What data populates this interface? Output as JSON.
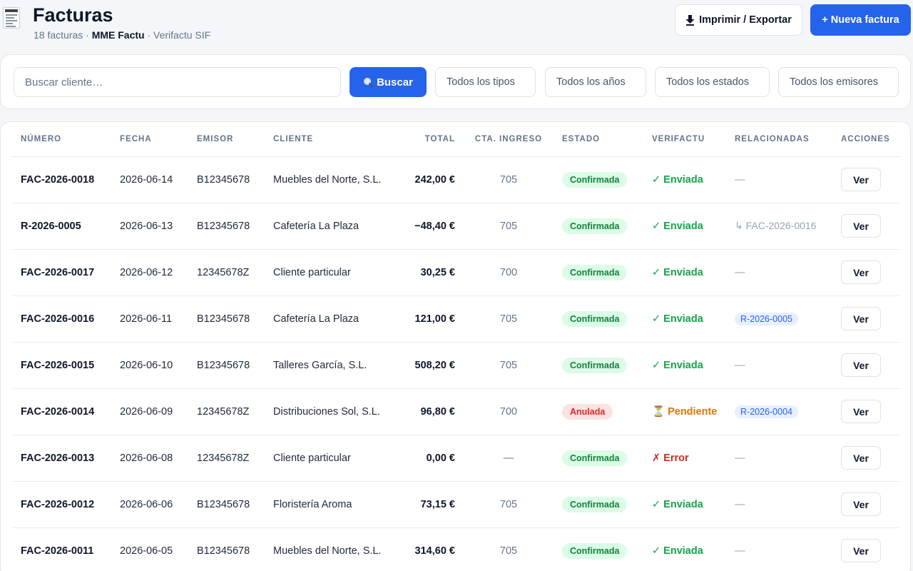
{
  "header": {
    "title": "Facturas",
    "subtitle_count": "18 facturas · ",
    "subtitle_company": "MME Factu",
    "subtitle_suffix": " · Verifactu SIF",
    "export_label": "Imprimir / Exportar",
    "new_label": "+ Nueva factura",
    "app_icon": "receipt-icon",
    "export_icon": "download-icon"
  },
  "filters": {
    "search_placeholder": "Buscar cliente…",
    "search_button": "Buscar",
    "search_icon": "magnifier-icon",
    "tipo": "Todos los tipos",
    "anio": "Todos los años",
    "estado": "Todos los estados",
    "emisor": "Todos los emisores"
  },
  "colors": {
    "accent": "#2563eb",
    "success": "#16a34a",
    "warning": "#d97706",
    "danger": "#dc2626"
  },
  "table": {
    "columns": [
      "NÚMERO",
      "FECHA",
      "EMISOR",
      "CLIENTE",
      "TOTAL",
      "CTA. INGRESO",
      "ESTADO",
      "VERIFACTU",
      "RELACIONADAS",
      "ACCIONES"
    ],
    "rows": [
      {
        "numero": "FAC-2026-0018",
        "fecha": "2026-06-14",
        "emisor": "B12345678",
        "cliente": "Muebles del Norte, S.L.",
        "total": "242,00 €",
        "cta": "705",
        "estado": "Confirmada",
        "estado_kind": "ok",
        "verif": "✓ Enviada",
        "verif_kind": "ok",
        "rel": "—",
        "rel_kind": "none",
        "accion": "Ver"
      },
      {
        "numero": "R-2026-0005",
        "fecha": "2026-06-13",
        "emisor": "B12345678",
        "cliente": "Cafetería La Plaza",
        "total": "−48,40 €",
        "cta": "705",
        "estado": "Confirmada",
        "estado_kind": "ok",
        "verif": "✓ Enviada",
        "verif_kind": "ok",
        "rel": "↳ FAC-2026-0016",
        "rel_kind": "link",
        "accion": "Ver"
      },
      {
        "numero": "FAC-2026-0017",
        "fecha": "2026-06-12",
        "emisor": "12345678Z",
        "cliente": "Cliente particular",
        "total": "30,25 €",
        "cta": "700",
        "estado": "Confirmada",
        "estado_kind": "ok",
        "verif": "✓ Enviada",
        "verif_kind": "ok",
        "rel": "—",
        "rel_kind": "none",
        "accion": "Ver"
      },
      {
        "numero": "FAC-2026-0016",
        "fecha": "2026-06-11",
        "emisor": "B12345678",
        "cliente": "Cafetería La Plaza",
        "total": "121,00 €",
        "cta": "705",
        "estado": "Confirmada",
        "estado_kind": "ok",
        "verif": "✓ Enviada",
        "verif_kind": "ok",
        "rel": "R-2026-0005",
        "rel_kind": "chip",
        "accion": "Ver"
      },
      {
        "numero": "FAC-2026-0015",
        "fecha": "2026-06-10",
        "emisor": "B12345678",
        "cliente": "Talleres García, S.L.",
        "total": "508,20 €",
        "cta": "705",
        "estado": "Confirmada",
        "estado_kind": "ok",
        "verif": "✓ Enviada",
        "verif_kind": "ok",
        "rel": "—",
        "rel_kind": "none",
        "accion": "Ver"
      },
      {
        "numero": "FAC-2026-0014",
        "fecha": "2026-06-09",
        "emisor": "12345678Z",
        "cliente": "Distribuciones Sol, S.L.",
        "total": "96,80 €",
        "cta": "700",
        "estado": "Anulada",
        "estado_kind": "bad",
        "verif": "⏳ Pendiente",
        "verif_kind": "pend",
        "rel": "R-2026-0004",
        "rel_kind": "chip",
        "accion": "Ver"
      },
      {
        "numero": "FAC-2026-0013",
        "fecha": "2026-06-08",
        "emisor": "12345678Z",
        "cliente": "Cliente particular",
        "total": "0,00 €",
        "cta": "—",
        "estado": "Confirmada",
        "estado_kind": "ok",
        "verif": "✗ Error",
        "verif_kind": "err",
        "rel": "—",
        "rel_kind": "none",
        "accion": "Ver"
      },
      {
        "numero": "FAC-2026-0012",
        "fecha": "2026-06-06",
        "emisor": "B12345678",
        "cliente": "Floristería Aroma",
        "total": "73,15 €",
        "cta": "705",
        "estado": "Confirmada",
        "estado_kind": "ok",
        "verif": "✓ Enviada",
        "verif_kind": "ok",
        "rel": "—",
        "rel_kind": "none",
        "accion": "Ver"
      },
      {
        "numero": "FAC-2026-0011",
        "fecha": "2026-06-05",
        "emisor": "B12345678",
        "cliente": "Muebles del Norte, S.L.",
        "total": "314,60 €",
        "cta": "705",
        "estado": "Confirmada",
        "estado_kind": "ok",
        "verif": "✓ Enviada",
        "verif_kind": "ok",
        "rel": "—",
        "rel_kind": "none",
        "accion": "Ver"
      }
    ]
  }
}
